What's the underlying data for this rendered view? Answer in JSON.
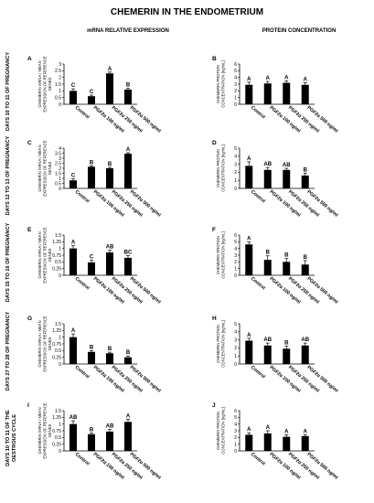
{
  "title": "CHEMERIN IN THE ENDOMETRIUM",
  "column_headers": {
    "left": "mRNA RELATIVE EXPRESSION",
    "right": "PROTEIN CONCENTRATION"
  },
  "row_labels": [
    [
      "DAYS 10 TO 11 OF PREGNANCY"
    ],
    [
      "DAYS 12 TO 13 OF PREGNANCY"
    ],
    [
      "DAYS 15 TO 16 OF PREGNANCY"
    ],
    [
      "DAYS 27 TO 28 OF PREGNANCY"
    ],
    [
      "DAYS 10 TO 11 OF THE",
      "OESTROUS CYCLE"
    ]
  ],
  "mrna_ylabel": [
    "CHEMERIN mRNA / MEAN",
    "EXPRESSION OF REFERENCE",
    "GENES"
  ],
  "protein_ylabel": [
    "CHEMERIN PROTEIN",
    "CONCENTRATION [ng/mL]"
  ],
  "categories": [
    "Control",
    "PGF2α 100 ng/ml",
    "PGF2α 250 ng/ml",
    "PGF2α 500 ng/ml"
  ],
  "chart_data": [
    {
      "panel": "A",
      "type": "bar",
      "measure": "mRNA",
      "row": 0,
      "values": [
        1.0,
        0.6,
        2.3,
        1.1
      ],
      "errors": [
        0.15,
        0.08,
        0.1,
        0.08
      ],
      "letters": [
        "C",
        "C",
        "A",
        "B"
      ],
      "ylim": [
        0,
        3
      ],
      "ticks": [
        0,
        0.5,
        1,
        1.5,
        2,
        2.5,
        3
      ],
      "tick_labels": [
        "0",
        "0.5",
        "1",
        "1.5",
        "2",
        "2.5",
        "3"
      ]
    },
    {
      "panel": "B",
      "type": "bar",
      "measure": "protein",
      "row": 0,
      "values": [
        2.9,
        3.1,
        3.2,
        2.9
      ],
      "errors": [
        0.4,
        0.3,
        0.3,
        0.3
      ],
      "letters": [
        "A",
        "A",
        "A",
        "A"
      ],
      "ylim": [
        0,
        6
      ],
      "ticks": [
        0,
        1,
        2,
        3,
        4,
        5,
        6
      ],
      "tick_labels": [
        "0",
        "1",
        "2",
        "3",
        "4",
        "5",
        "6"
      ]
    },
    {
      "panel": "C",
      "type": "bar",
      "measure": "mRNA",
      "row": 1,
      "values": [
        0.8,
        2.15,
        2.0,
        3.45
      ],
      "errors": [
        0.15,
        0.1,
        0.1,
        0.1
      ],
      "letters": [
        "C",
        "B",
        "B",
        "A"
      ],
      "ylim": [
        0,
        4
      ],
      "ticks": [
        0,
        0.5,
        1,
        1.5,
        2,
        2.5,
        3,
        3.5,
        4
      ],
      "tick_labels": [
        "0",
        "0.5",
        "1",
        "1.5",
        "2",
        "2.5",
        "3",
        "3.5",
        "4"
      ]
    },
    {
      "panel": "D",
      "type": "bar",
      "measure": "protein",
      "row": 1,
      "values": [
        2.8,
        2.3,
        2.3,
        1.6
      ],
      "errors": [
        0.5,
        0.3,
        0.2,
        0.3
      ],
      "letters": [
        "A",
        "AB",
        "AB",
        "B"
      ],
      "ylim": [
        0,
        5
      ],
      "ticks": [
        0,
        1,
        2,
        3,
        4,
        5
      ],
      "tick_labels": [
        "0",
        "1",
        "2",
        "3",
        "4",
        "5"
      ]
    },
    {
      "panel": "E",
      "type": "bar",
      "measure": "mRNA",
      "row": 2,
      "values": [
        1.0,
        0.48,
        0.85,
        0.65
      ],
      "errors": [
        0.1,
        0.08,
        0.08,
        0.08
      ],
      "letters": [
        "A",
        "C",
        "AB",
        "BC"
      ],
      "ylim": [
        0,
        1.5
      ],
      "ticks": [
        0,
        0.25,
        0.5,
        0.75,
        1,
        1.25,
        1.5
      ],
      "tick_labels": [
        "0",
        "0.25",
        "0.5",
        "0.75",
        "1",
        "1.25",
        "1.5"
      ]
    },
    {
      "panel": "F",
      "type": "bar",
      "measure": "protein",
      "row": 2,
      "values": [
        4.6,
        2.3,
        2.0,
        1.6
      ],
      "errors": [
        0.35,
        0.6,
        0.5,
        0.6
      ],
      "letters": [
        "A",
        "B",
        "B",
        "B"
      ],
      "ylim": [
        0,
        6
      ],
      "ticks": [
        0,
        1,
        2,
        3,
        4,
        5,
        6
      ],
      "tick_labels": [
        "0",
        "1",
        "2",
        "3",
        "4",
        "5",
        "6"
      ]
    },
    {
      "panel": "G",
      "type": "bar",
      "measure": "mRNA",
      "row": 3,
      "values": [
        1.0,
        0.45,
        0.4,
        0.25
      ],
      "errors": [
        0.12,
        0.05,
        0.04,
        0.05
      ],
      "letters": [
        "A",
        "B",
        "B",
        "B"
      ],
      "ylim": [
        0,
        1.5
      ],
      "ticks": [
        0,
        0.25,
        0.5,
        0.75,
        1,
        1.25,
        1.5
      ],
      "tick_labels": [
        "0",
        "0.25",
        "0.5",
        "0.75",
        "1",
        "1.25",
        "1.5"
      ]
    },
    {
      "panel": "H",
      "type": "bar",
      "measure": "protein",
      "row": 3,
      "values": [
        2.9,
        2.3,
        1.9,
        2.3
      ],
      "errors": [
        0.3,
        0.3,
        0.3,
        0.3
      ],
      "letters": [
        "A",
        "AB",
        "B",
        "AB"
      ],
      "ylim": [
        0,
        5
      ],
      "ticks": [
        0,
        1,
        2,
        3,
        4,
        5
      ],
      "tick_labels": [
        "0",
        "1",
        "2",
        "3",
        "4",
        "5"
      ]
    },
    {
      "panel": "I",
      "type": "bar",
      "measure": "mRNA",
      "row": 4,
      "values": [
        1.0,
        0.62,
        0.72,
        1.08
      ],
      "errors": [
        0.12,
        0.05,
        0.08,
        0.1
      ],
      "letters": [
        "AB",
        "B",
        "AB",
        "A"
      ],
      "ylim": [
        0,
        1.5
      ],
      "ticks": [
        0,
        0.25,
        0.5,
        0.75,
        1,
        1.25,
        1.5
      ],
      "tick_labels": [
        "0",
        "0.25",
        "0.5",
        "0.75",
        "1",
        "1.25",
        "1.5"
      ]
    },
    {
      "panel": "J",
      "type": "bar",
      "measure": "protein",
      "row": 4,
      "values": [
        2.4,
        2.6,
        2.1,
        2.2
      ],
      "errors": [
        0.3,
        0.4,
        0.3,
        0.2
      ],
      "letters": [
        "A",
        "A",
        "A",
        "A"
      ],
      "ylim": [
        0,
        6
      ],
      "ticks": [
        0,
        1,
        2,
        3,
        4,
        5,
        6
      ],
      "tick_labels": [
        "0",
        "1",
        "2",
        "3",
        "4",
        "5",
        "6"
      ]
    }
  ]
}
